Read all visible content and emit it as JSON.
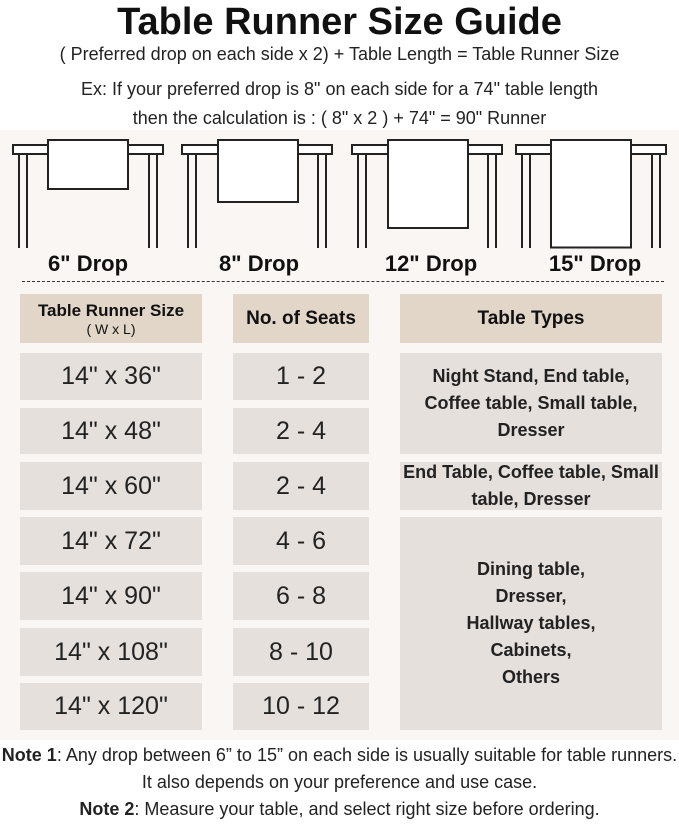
{
  "title": "Table Runner Size Guide",
  "formula": "( Preferred drop on each side x 2) + Table Length = Table Runner Size",
  "example_line1": "Ex: If your preferred drop is 8\" on each side for a 74\" table length",
  "example_line2": "then the calculation is : ( 8\" x 2 ) + 74\" = 90\" Runner",
  "drops": [
    {
      "label": "6\" Drop",
      "inches": 6
    },
    {
      "label": "8\" Drop",
      "inches": 8
    },
    {
      "label": "12\" Drop",
      "inches": 12
    },
    {
      "label": "15\" Drop",
      "inches": 15
    }
  ],
  "table": {
    "headers": {
      "size": "Table Runner Size",
      "size_sub": "( W x L)",
      "seats": "No. of Seats",
      "types": "Table Types"
    },
    "rows": [
      {
        "size": "14\" x 36\"",
        "seats": "1 - 2"
      },
      {
        "size": "14\" x 48\"",
        "seats": "2 - 4"
      },
      {
        "size": "14\" x 60\"",
        "seats": "2 - 4"
      },
      {
        "size": "14\" x 72\"",
        "seats": "4 - 6"
      },
      {
        "size": "14\" x 90\"",
        "seats": "6 - 8"
      },
      {
        "size": "14\" x 108\"",
        "seats": "8 - 10"
      },
      {
        "size": "14\" x 120\"",
        "seats": "10 - 12"
      }
    ],
    "types": [
      "Night Stand, End table, Coffee table, Small table, Dresser",
      "End Table, Coffee table, Small table, Dresser",
      "Dining table, Dresser, Hallway tables, Cabinets, Others"
    ]
  },
  "notes": {
    "note1_label": "Note 1",
    "note1_text": ": Any drop between 6” to 15” on each side is usually suitable for table runners. It also depends on your preference and use case.",
    "note2_label": "Note 2",
    "note2_text": ": Measure your table, and select right size before ordering."
  },
  "colors": {
    "header_cell": "#e2d6c8",
    "body_cell": "#e6e0dc",
    "band": "#f9f6f3"
  }
}
